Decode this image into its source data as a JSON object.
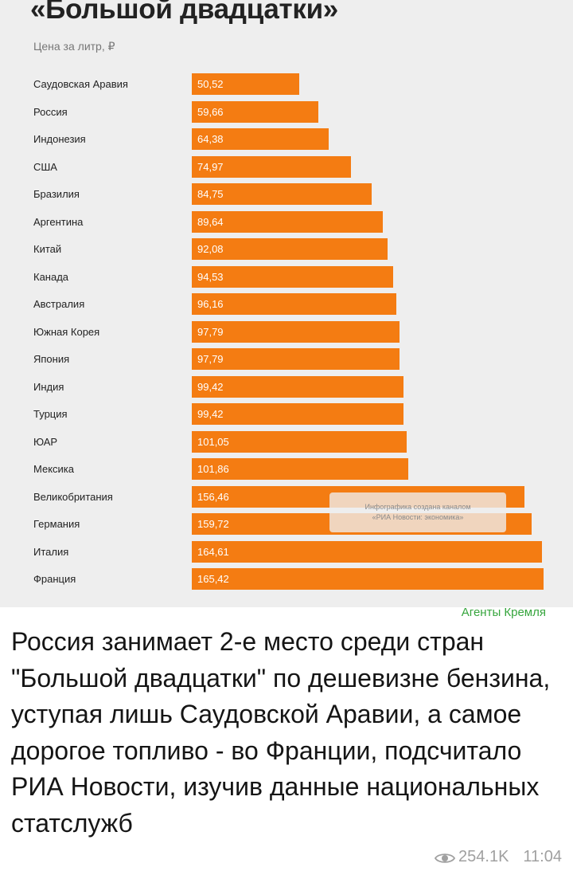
{
  "chart_data": {
    "type": "bar",
    "orientation": "horizontal",
    "title": "«Большой двадцатки»",
    "subtitle": "Цена за литр, ₽",
    "categories": [
      "Саудовская Аравия",
      "Россия",
      "Индонезия",
      "США",
      "Бразилия",
      "Аргентина",
      "Китай",
      "Канада",
      "Австралия",
      "Южная Корея",
      "Япония",
      "Индия",
      "Турция",
      "ЮАР",
      "Мексика",
      "Великобритания",
      "Германия",
      "Италия",
      "Франция"
    ],
    "values": [
      50.52,
      59.66,
      64.38,
      74.97,
      84.75,
      89.64,
      92.08,
      94.53,
      96.16,
      97.79,
      97.79,
      99.42,
      99.42,
      101.05,
      101.86,
      156.46,
      159.72,
      164.61,
      165.42
    ],
    "value_labels": [
      "50,52",
      "59,66",
      "64,38",
      "74,97",
      "84,75",
      "89,64",
      "92,08",
      "94,53",
      "96,16",
      "97,79",
      "97,79",
      "99,42",
      "99,42",
      "101,05",
      "101,86",
      "156,46",
      "159,72",
      "164,61",
      "165,42"
    ],
    "colors": {
      "bar": "#f47c12",
      "value_text": "#ffffff",
      "background": "#eeeeee"
    },
    "grid": false,
    "legend": "none"
  },
  "infographic_note": {
    "line1": "Инфографика создана каналом",
    "line2": "«РИА Новости: экономика»"
  },
  "post": {
    "channel_name": "Агенты Кремля",
    "text": "Россия занимает 2-е место среди стран \"Большой двадцатки\" по дешевизне бензина, уступая лишь Саудовской Аравии, а самое дорогое топливо - во Франции, подсчитало РИА Новости, изучив данные национальных статслужб",
    "views": "254.1K",
    "time": "11:04",
    "icons": {
      "views": "eye-icon"
    },
    "colors": {
      "channel": "#36a53d",
      "meta": "#a0a0a0"
    }
  }
}
